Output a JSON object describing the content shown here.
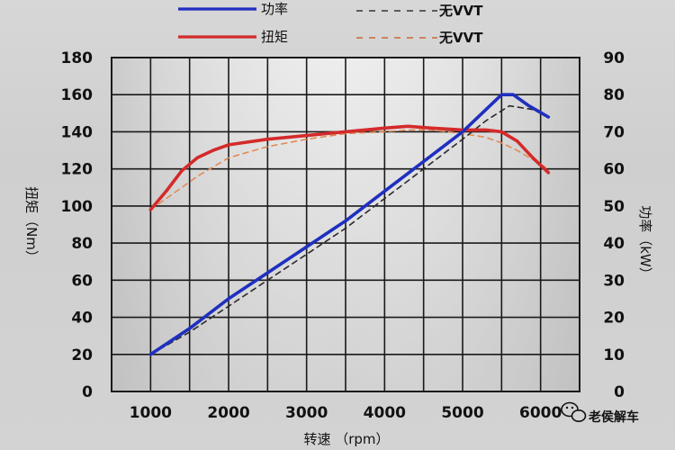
{
  "chart_data": {
    "type": "line",
    "legend": {
      "placement": "top",
      "entries": [
        {
          "label": "功率",
          "ref_label": "无VVT",
          "color": "#1f2fbf"
        },
        {
          "label": "扭矩",
          "ref_label": "无VVT",
          "color": "#d42a2a"
        }
      ]
    },
    "xlabel": "转速 （rpm）",
    "ylabel_left": "扭矩（Nm）",
    "ylabel_right": "功率（kW）",
    "x_ticks": [
      "1000",
      "2000",
      "3000",
      "4000",
      "5000",
      "6000"
    ],
    "y_left_ticks": [
      "0",
      "20",
      "40",
      "60",
      "80",
      "100",
      "120",
      "140",
      "160",
      "180"
    ],
    "y_right_ticks": [
      "0",
      "10",
      "20",
      "30",
      "40",
      "50",
      "60",
      "70",
      "80",
      "90"
    ],
    "xlim": [
      500,
      6500
    ],
    "ylim_left": [
      0,
      180
    ],
    "ylim_right": [
      0,
      90
    ],
    "grid": true,
    "series": [
      {
        "name": "扭矩",
        "axis": "left",
        "style": "solid",
        "color": "#d42a2a",
        "x": [
          1000,
          1200,
          1400,
          1600,
          1800,
          2000,
          2500,
          3000,
          3500,
          4000,
          4300,
          4600,
          5000,
          5300,
          5500,
          5700,
          5900,
          6100
        ],
        "y": [
          98,
          108,
          119,
          126,
          130,
          133,
          136,
          138,
          140,
          142,
          143,
          142,
          141,
          141,
          140,
          135,
          126,
          118
        ]
      },
      {
        "name": "扭矩 无VVT",
        "axis": "left",
        "style": "dashed",
        "color": "#e08a55",
        "x": [
          1000,
          1200,
          1400,
          1600,
          1800,
          2000,
          2500,
          3000,
          3500,
          4000,
          4300,
          4600,
          5000,
          5300,
          5500,
          5700,
          5900,
          6100
        ],
        "y": [
          98,
          104,
          110,
          116,
          121,
          126,
          132,
          136,
          139,
          140,
          141,
          141,
          139,
          137,
          134,
          130,
          125,
          120
        ]
      },
      {
        "name": "功率",
        "axis": "right",
        "style": "solid",
        "color": "#1f2fbf",
        "x": [
          1000,
          1500,
          2000,
          2500,
          3000,
          3500,
          4000,
          4500,
          5000,
          5300,
          5500,
          5650,
          5850,
          6100
        ],
        "y": [
          10,
          17,
          25,
          32,
          39,
          46,
          54,
          62,
          70,
          76,
          80,
          80,
          77,
          74
        ]
      },
      {
        "name": "功率 无VVT",
        "axis": "right",
        "style": "dashed",
        "color": "#2a2a2a",
        "x": [
          1000,
          1500,
          2000,
          2500,
          3000,
          3500,
          4000,
          4500,
          5000,
          5300,
          5600,
          5900,
          6100
        ],
        "y": [
          10,
          16,
          23,
          30,
          37,
          44,
          52,
          60,
          68,
          73,
          77,
          76,
          74
        ]
      }
    ]
  },
  "watermark": {
    "text": "老侯解车",
    "icon": "wechat-icon"
  }
}
